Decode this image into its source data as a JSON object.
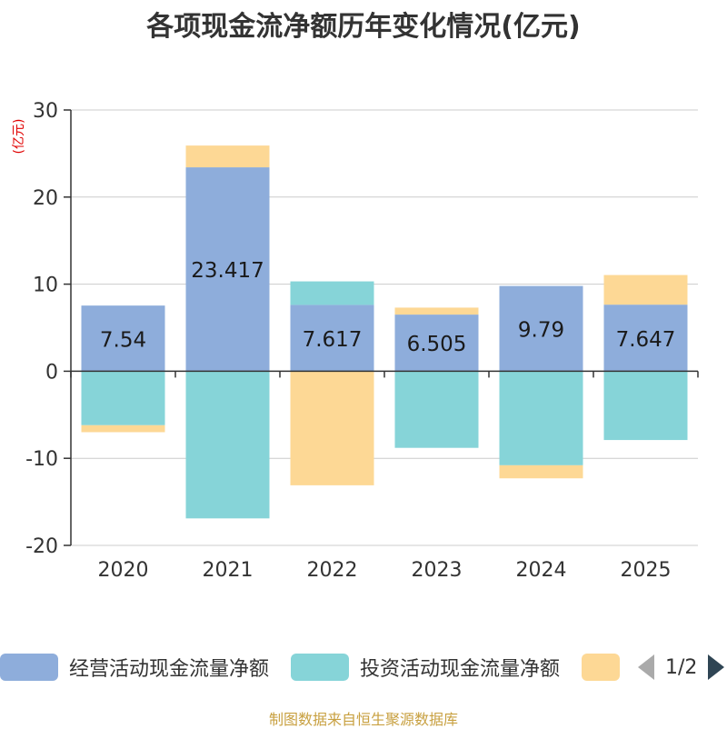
{
  "chart_data": {
    "type": "bar",
    "title": "各项现金流净额历年变化情况(亿元)",
    "ylabel": "(亿元)",
    "ylim": [
      -20,
      30
    ],
    "yticks": [
      30,
      20,
      10,
      0,
      -10,
      -20
    ],
    "categories": [
      "2020",
      "2021",
      "2022",
      "2023",
      "2024",
      "2025"
    ],
    "stacked": true,
    "series": [
      {
        "name": "经营活动现金流量净额",
        "color": "#8eaddb",
        "values": [
          7.54,
          23.417,
          7.617,
          6.505,
          9.79,
          7.647
        ],
        "show_labels": true
      },
      {
        "name": "投资活动现金流量净额",
        "color": "#86d4d8",
        "values": [
          -6.2,
          -16.9,
          2.7,
          -8.8,
          -10.8,
          -7.9
        ],
        "show_labels": false
      },
      {
        "name": "",
        "color": "#fdd895",
        "values": [
          -0.8,
          2.5,
          -13.1,
          0.8,
          -1.5,
          3.4
        ],
        "show_labels": false
      }
    ],
    "data_labels": [
      "7.54",
      "23.417",
      "7.617",
      "6.505",
      "9.79",
      "7.647"
    ]
  },
  "legend": {
    "items": [
      "经营活动现金流量净额",
      "投资活动现金流量净额",
      ""
    ],
    "page": "1/2"
  },
  "source": "制图数据来自恒生聚源数据库"
}
